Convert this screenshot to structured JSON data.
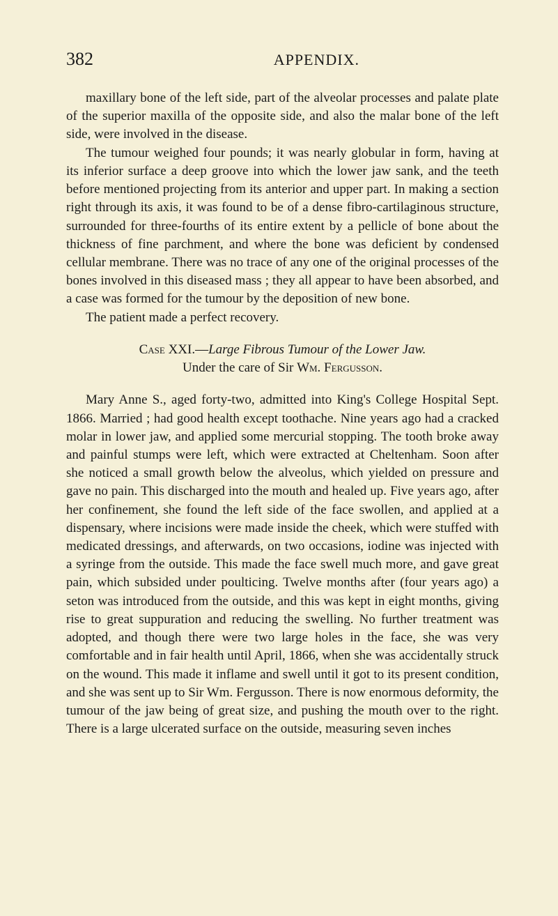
{
  "header": {
    "page_number": "382",
    "section_title": "APPENDIX."
  },
  "paragraphs": {
    "p1": "maxillary bone of the left side, part of the alveolar processes and palate plate of the superior maxilla of the opposite side, and also the malar bone of the left side, were involved in the disease.",
    "p2": "The tumour weighed four pounds; it was nearly globular in form, having at its inferior surface a deep groove into which the lower jaw sank, and the teeth before mentioned projecting from its anterior and upper part. In making a section right through its axis, it was found to be of a dense fibro-cartilaginous structure, surrounded for three-fourths of its entire extent by a pellicle of bone about the thickness of fine parchment, and where the bone was deficient by condensed cellular membrane. There was no trace of any one of the original processes of the bones involved in this diseased mass ; they all appear to have been absorbed, and a case was formed for the tumour by the deposition of new bone.",
    "p3": "The patient made a perfect recovery."
  },
  "case": {
    "case_label": "Case",
    "case_number": "XXI.",
    "dash": "—",
    "title_italic": "Large Fibrous Tumour of the Lower Jaw.",
    "subtitle_prefix": "Under the care of Sir ",
    "subtitle_name": "Wm. Fergusson."
  },
  "case_body": {
    "p4": "Mary Anne S., aged forty-two, admitted into King's College Hospital Sept. 1866. Married ; had good health except toothache. Nine years ago had a cracked molar in lower jaw, and applied some mercurial stopping. The tooth broke away and painful stumps were left, which were extracted at Cheltenham. Soon after she noticed a small growth below the alveolus, which yielded on pressure and gave no pain. This discharged into the mouth and healed up. Five years ago, after her confinement, she found the left side of the face swollen, and applied at a dispensary, where incisions were made inside the cheek, which were stuffed with medicated dressings, and afterwards, on two occasions, iodine was injected with a syringe from the outside. This made the face swell much more, and gave great pain, which subsided under poulticing. Twelve months after (four years ago) a seton was introduced from the outside, and this was kept in eight months, giving rise to great suppuration and reducing the swelling. No further treatment was adopted, and though there were two large holes in the face, she was very comfortable and in fair health until April, 1866, when she was accidentally struck on the wound. This made it inflame and swell until it got to its present condition, and she was sent up to Sir Wm. Fergusson. There is now enormous deformity, the tumour of the jaw being of great size, and pushing the mouth over to the right. There is a large ulcerated surface on the outside, measuring seven inches"
  },
  "colors": {
    "background": "#f5f0d8",
    "text": "#1a1a1a"
  },
  "typography": {
    "body_fontsize": 19,
    "header_number_fontsize": 26,
    "header_title_fontsize": 22,
    "font_family": "Georgia, Times New Roman, serif",
    "line_height": 1.38
  }
}
